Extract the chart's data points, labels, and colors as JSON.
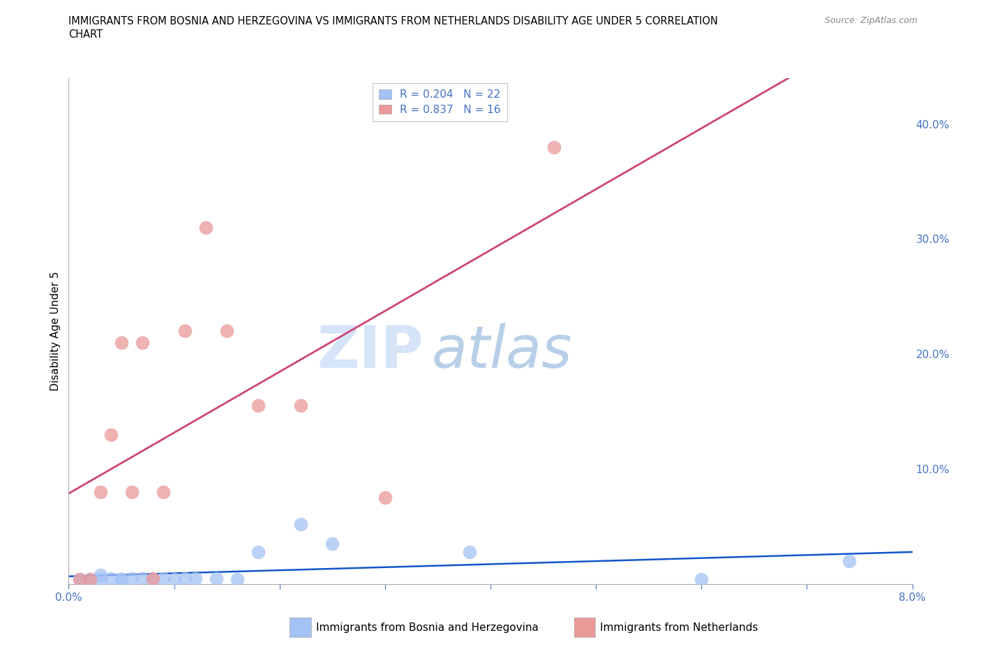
{
  "title_line1": "IMMIGRANTS FROM BOSNIA AND HERZEGOVINA VS IMMIGRANTS FROM NETHERLANDS DISABILITY AGE UNDER 5 CORRELATION",
  "title_line2": "CHART",
  "source": "Source: ZipAtlas.com",
  "ylabel": "Disability Age Under 5",
  "xlim": [
    0.0,
    0.08
  ],
  "ylim": [
    0.0,
    0.44
  ],
  "xticks": [
    0.0,
    0.01,
    0.02,
    0.03,
    0.04,
    0.05,
    0.06,
    0.07,
    0.08
  ],
  "yticks_right": [
    0.0,
    0.1,
    0.2,
    0.3,
    0.4
  ],
  "bosnia_x": [
    0.001,
    0.002,
    0.003,
    0.003,
    0.004,
    0.005,
    0.005,
    0.006,
    0.007,
    0.008,
    0.009,
    0.01,
    0.011,
    0.012,
    0.014,
    0.016,
    0.018,
    0.022,
    0.025,
    0.038,
    0.06,
    0.074
  ],
  "bosnia_y": [
    0.004,
    0.004,
    0.004,
    0.008,
    0.005,
    0.004,
    0.004,
    0.005,
    0.005,
    0.004,
    0.005,
    0.004,
    0.005,
    0.005,
    0.005,
    0.004,
    0.028,
    0.052,
    0.035,
    0.028,
    0.004,
    0.02
  ],
  "netherlands_x": [
    0.001,
    0.002,
    0.003,
    0.004,
    0.005,
    0.006,
    0.007,
    0.008,
    0.009,
    0.011,
    0.013,
    0.015,
    0.018,
    0.022,
    0.03,
    0.046
  ],
  "netherlands_y": [
    0.004,
    0.004,
    0.08,
    0.13,
    0.21,
    0.08,
    0.21,
    0.005,
    0.08,
    0.22,
    0.31,
    0.22,
    0.155,
    0.155,
    0.075,
    0.38
  ],
  "R_bosnia": 0.204,
  "N_bosnia": 22,
  "R_netherlands": 0.837,
  "N_netherlands": 16,
  "color_bosnia": "#a4c2f4",
  "color_netherlands": "#ea9999",
  "trendline_bosnia": "#1155cc",
  "trendline_netherlands": "#cc4477",
  "background_color": "#ffffff",
  "grid_color": "#cccccc",
  "axis_color": "#4472c4",
  "watermark_zip": "ZIP",
  "watermark_atlas": "atlas",
  "watermark_color_zip": "#d6e4f7",
  "watermark_color_atlas": "#b8cfe8"
}
